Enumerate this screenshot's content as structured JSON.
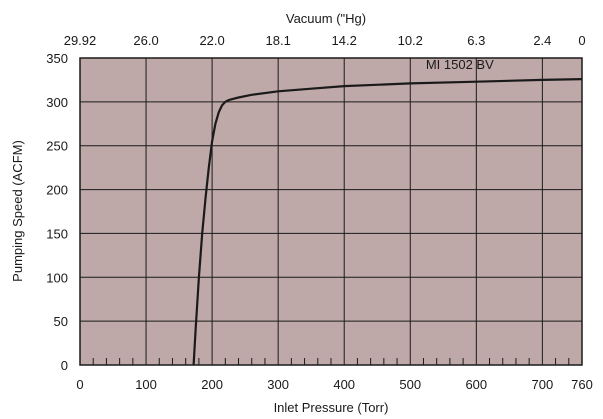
{
  "chart_data": {
    "type": "line",
    "title": "",
    "xlabel": "Inlet Pressure (Torr)",
    "ylabel": "Pumping Speed (ACFM)",
    "top_axis_label": "Vacuum (\"Hg)",
    "xlim": [
      0,
      760
    ],
    "ylim": [
      0,
      350
    ],
    "x_ticks": [
      0,
      100,
      200,
      300,
      400,
      500,
      600,
      700,
      760
    ],
    "x_tick_labels": [
      "0",
      "100",
      "200",
      "300",
      "400",
      "500",
      "600",
      "700",
      "760"
    ],
    "y_ticks": [
      0,
      50,
      100,
      150,
      200,
      250,
      300,
      350
    ],
    "y_tick_labels": [
      "0",
      "50",
      "100",
      "150",
      "200",
      "250",
      "300",
      "350"
    ],
    "top_ticks": [
      {
        "label": "29.92",
        "torr": 0
      },
      {
        "label": "26.0",
        "torr": 100
      },
      {
        "label": "22.0",
        "torr": 200
      },
      {
        "label": "18.1",
        "torr": 300
      },
      {
        "label": "14.2",
        "torr": 400
      },
      {
        "label": "10.2",
        "torr": 500
      },
      {
        "label": "6.3",
        "torr": 600
      },
      {
        "label": "2.4",
        "torr": 700
      },
      {
        "label": "0",
        "torr": 760
      }
    ],
    "grid": true,
    "background_color": "#bfa9a8",
    "line_color": "#1a1a1a",
    "series": [
      {
        "name": "MI 1502 BV",
        "x": [
          172,
          175,
          180,
          185,
          190,
          195,
          200,
          205,
          210,
          215,
          220,
          225,
          230,
          240,
          260,
          300,
          350,
          400,
          500,
          600,
          700,
          760
        ],
        "y": [
          0,
          40,
          100,
          150,
          190,
          225,
          255,
          275,
          288,
          296,
          300,
          302,
          303,
          305,
          308,
          312,
          315,
          318,
          321,
          323,
          325,
          326
        ]
      }
    ]
  }
}
